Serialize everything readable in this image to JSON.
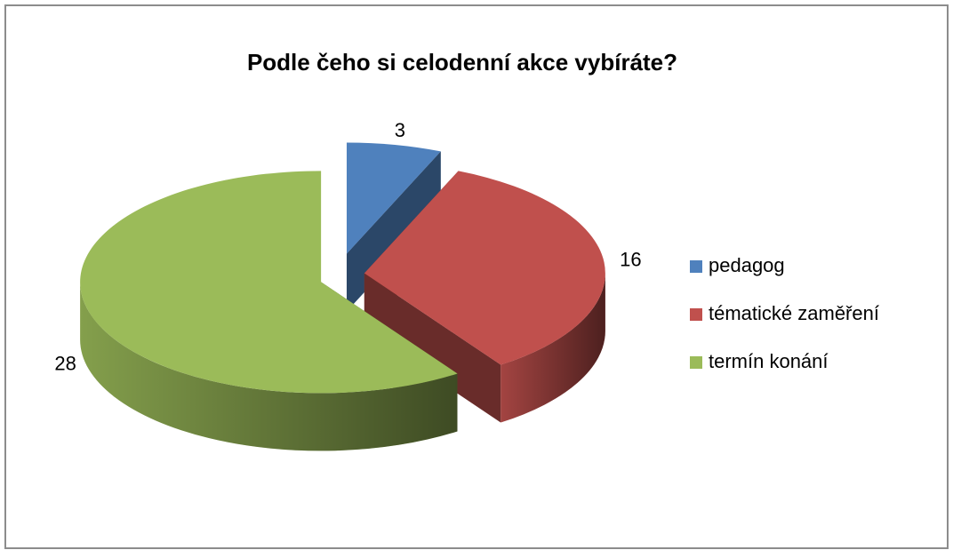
{
  "chart_data": {
    "type": "pie",
    "title": "Podle čeho si celodenní akce vybíráte?",
    "categories": [
      "pedagog",
      "tématické zaměření",
      "termín konání"
    ],
    "values": [
      3,
      16,
      28
    ],
    "colors": [
      "#4f81bd",
      "#c0504d",
      "#9bbb59"
    ],
    "legend": "right"
  }
}
